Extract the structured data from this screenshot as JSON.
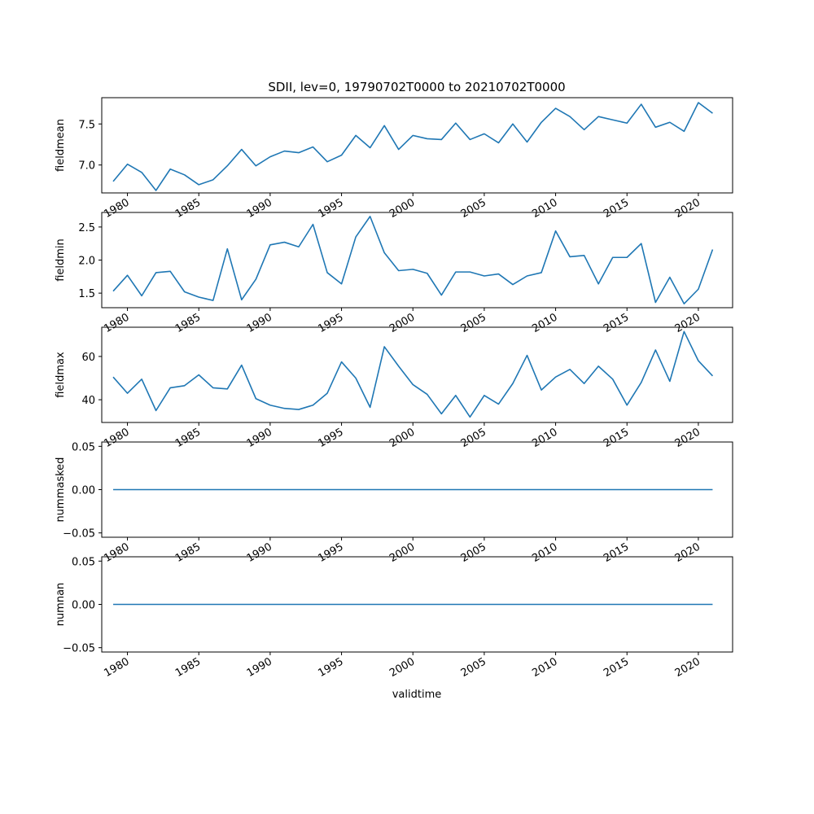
{
  "chart_data": {
    "type": "line",
    "title": "SDII, lev=0, 19790702T0000 to 20210702T0000",
    "xlabel": "validtime",
    "x": [
      1979,
      1980,
      1981,
      1982,
      1983,
      1984,
      1985,
      1986,
      1987,
      1988,
      1989,
      1990,
      1991,
      1992,
      1993,
      1994,
      1995,
      1996,
      1997,
      1998,
      1999,
      2000,
      2001,
      2002,
      2003,
      2004,
      2005,
      2006,
      2007,
      2008,
      2009,
      2010,
      2011,
      2012,
      2013,
      2014,
      2015,
      2016,
      2017,
      2018,
      2019,
      2020,
      2021
    ],
    "xticks": [
      1980,
      1985,
      1990,
      1995,
      2000,
      2005,
      2010,
      2015,
      2020
    ],
    "xtick_labels": [
      "1980",
      "1985",
      "1990",
      "1995",
      "2000",
      "2005",
      "2010",
      "2015",
      "2020"
    ],
    "xlim": [
      1978.2,
      2022.4
    ],
    "subplots": [
      {
        "ylabel": "fieldmean",
        "ylim": [
          6.66,
          7.82
        ],
        "yticks": [
          7.0,
          7.5
        ],
        "ytick_labels": [
          "7.0",
          "7.5"
        ],
        "values": [
          6.8,
          7.01,
          6.91,
          6.69,
          6.95,
          6.88,
          6.76,
          6.82,
          6.99,
          7.19,
          6.99,
          7.1,
          7.17,
          7.15,
          7.22,
          7.04,
          7.12,
          7.36,
          7.21,
          7.48,
          7.19,
          7.36,
          7.32,
          7.31,
          7.51,
          7.31,
          7.38,
          7.27,
          7.5,
          7.28,
          7.52,
          7.69,
          7.59,
          7.43,
          7.59,
          7.55,
          7.51,
          7.74,
          7.46,
          7.52,
          7.41,
          7.76,
          7.63
        ]
      },
      {
        "ylabel": "fieldmin",
        "ylim": [
          1.28,
          2.72
        ],
        "yticks": [
          1.5,
          2.0,
          2.5
        ],
        "ytick_labels": [
          "1.5",
          "2.0",
          "2.5"
        ],
        "values": [
          1.53,
          1.77,
          1.46,
          1.81,
          1.83,
          1.52,
          1.44,
          1.39,
          2.17,
          1.4,
          1.71,
          2.23,
          2.27,
          2.2,
          2.54,
          1.81,
          1.64,
          2.35,
          2.66,
          2.11,
          1.84,
          1.86,
          1.8,
          1.47,
          1.82,
          1.82,
          1.76,
          1.79,
          1.63,
          1.76,
          1.81,
          2.44,
          2.05,
          2.07,
          1.64,
          2.04,
          2.04,
          2.25,
          1.36,
          1.74,
          1.34,
          1.56,
          2.16
        ]
      },
      {
        "ylabel": "fieldmax",
        "ylim": [
          29.5,
          73.5
        ],
        "yticks": [
          40,
          60
        ],
        "ytick_labels": [
          "40",
          "60"
        ],
        "values": [
          50.5,
          43.0,
          49.5,
          35.0,
          45.5,
          46.5,
          51.5,
          45.5,
          45.0,
          56.0,
          40.5,
          37.5,
          36.0,
          35.5,
          37.5,
          43.0,
          57.5,
          50.0,
          36.5,
          64.5,
          55.5,
          47.0,
          42.5,
          33.5,
          42.0,
          32.0,
          42.0,
          38.0,
          47.5,
          60.5,
          44.5,
          50.5,
          54.0,
          47.5,
          55.5,
          49.5,
          37.5,
          48.0,
          63.0,
          48.5,
          71.5,
          58.0,
          51.0
        ]
      },
      {
        "ylabel": "nummasked",
        "ylim": [
          -0.055,
          0.055
        ],
        "yticks": [
          -0.05,
          0.0,
          0.05
        ],
        "ytick_labels": [
          "−0.05",
          "0.00",
          "0.05"
        ],
        "values": [
          0,
          0,
          0,
          0,
          0,
          0,
          0,
          0,
          0,
          0,
          0,
          0,
          0,
          0,
          0,
          0,
          0,
          0,
          0,
          0,
          0,
          0,
          0,
          0,
          0,
          0,
          0,
          0,
          0,
          0,
          0,
          0,
          0,
          0,
          0,
          0,
          0,
          0,
          0,
          0,
          0,
          0,
          0
        ]
      },
      {
        "ylabel": "numnan",
        "ylim": [
          -0.055,
          0.055
        ],
        "yticks": [
          -0.05,
          0.0,
          0.05
        ],
        "ytick_labels": [
          "−0.05",
          "0.00",
          "0.05"
        ],
        "values": [
          0,
          0,
          0,
          0,
          0,
          0,
          0,
          0,
          0,
          0,
          0,
          0,
          0,
          0,
          0,
          0,
          0,
          0,
          0,
          0,
          0,
          0,
          0,
          0,
          0,
          0,
          0,
          0,
          0,
          0,
          0,
          0,
          0,
          0,
          0,
          0,
          0,
          0,
          0,
          0,
          0,
          0,
          0
        ]
      }
    ],
    "grid": false,
    "line_color": "#1f77b4"
  }
}
